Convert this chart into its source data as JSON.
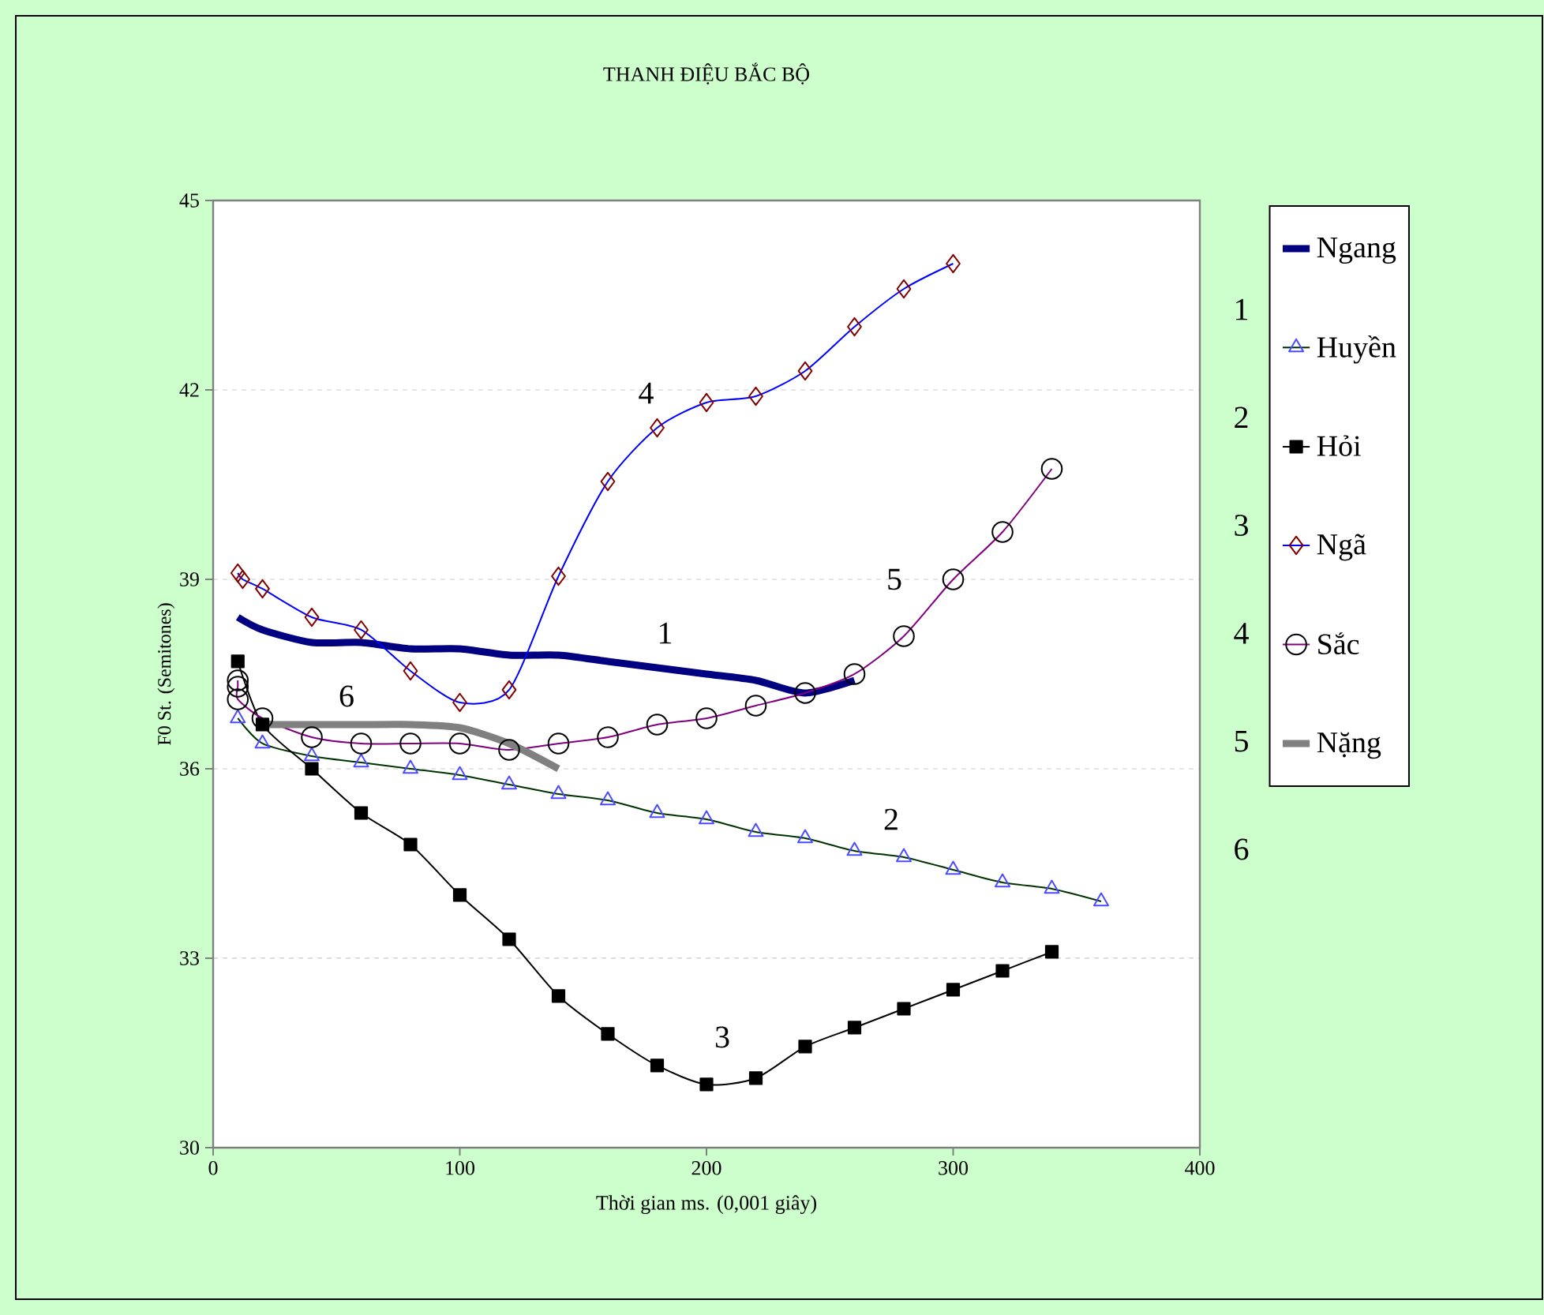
{
  "chart_data": {
    "type": "line",
    "title": "THANH ĐIỆU BẮC BỘ",
    "xlabel": "Thời gian ms. (0,001 giây)",
    "ylabel": "F0 St. (Semitones)",
    "xlim": [
      0,
      400
    ],
    "xticks": [
      0,
      100,
      200,
      300,
      400
    ],
    "ylim": [
      30,
      45
    ],
    "yticks": [
      30,
      33,
      36,
      39,
      42,
      45
    ],
    "grid": "y",
    "legend": "right",
    "series": [
      {
        "name": "Ngang",
        "color": "#000080",
        "marker": "none",
        "x": [
          10,
          20,
          40,
          60,
          80,
          100,
          120,
          140,
          160,
          180,
          200,
          220,
          240,
          260
        ],
        "values": [
          38.4,
          38.2,
          38.0,
          38.0,
          37.9,
          37.9,
          37.8,
          37.8,
          37.7,
          37.6,
          37.5,
          37.4,
          37.2,
          37.4
        ]
      },
      {
        "name": "Huyền",
        "color": "#003300",
        "marker": "triangle",
        "x": [
          10,
          20,
          40,
          60,
          80,
          100,
          120,
          140,
          160,
          180,
          200,
          220,
          240,
          260,
          280,
          300,
          320,
          340,
          360
        ],
        "values": [
          36.8,
          36.4,
          36.2,
          36.1,
          36.0,
          35.9,
          35.75,
          35.6,
          35.5,
          35.3,
          35.2,
          35.0,
          34.9,
          34.7,
          34.6,
          34.4,
          34.2,
          34.1,
          33.9
        ]
      },
      {
        "name": "Hỏi",
        "color": "#000000",
        "marker": "square",
        "x": [
          10,
          20,
          40,
          60,
          80,
          100,
          120,
          140,
          160,
          180,
          200,
          220,
          240,
          260,
          280,
          300,
          320,
          340
        ],
        "values": [
          37.7,
          36.7,
          36.0,
          35.3,
          34.8,
          34.0,
          33.3,
          32.4,
          31.8,
          31.3,
          31.0,
          31.1,
          31.6,
          31.9,
          32.2,
          32.5,
          32.8,
          33.1
        ]
      },
      {
        "name": "Ngã",
        "color": "#0000ff",
        "marker": "diamond",
        "x": [
          10,
          12,
          20,
          40,
          60,
          80,
          100,
          120,
          140,
          160,
          180,
          200,
          220,
          240,
          260,
          280,
          300
        ],
        "values": [
          39.1,
          39.0,
          38.85,
          38.4,
          38.2,
          37.55,
          37.05,
          37.25,
          39.05,
          40.55,
          41.4,
          41.8,
          41.9,
          42.3,
          43.0,
          43.6,
          44.0
        ]
      },
      {
        "name": "Sắc",
        "color": "#800080",
        "marker": "circle",
        "x": [
          10,
          10,
          10,
          20,
          40,
          60,
          80,
          100,
          120,
          140,
          160,
          180,
          200,
          220,
          240,
          260,
          280,
          300,
          320,
          340
        ],
        "values": [
          37.4,
          37.3,
          37.1,
          36.8,
          36.5,
          36.4,
          36.4,
          36.4,
          36.3,
          36.4,
          36.5,
          36.7,
          36.8,
          37.0,
          37.2,
          37.5,
          38.1,
          39.0,
          39.75,
          40.75
        ]
      },
      {
        "name": "Nặng",
        "color": "#808080",
        "marker": "none",
        "x": [
          20,
          40,
          60,
          80,
          100,
          120,
          140
        ],
        "values": [
          36.7,
          36.7,
          36.7,
          36.7,
          36.65,
          36.4,
          36.0
        ]
      }
    ],
    "annotations": [
      "1",
      "2",
      "3",
      "4",
      "5",
      "6",
      "1",
      "2",
      "3",
      "4",
      "5",
      "6"
    ]
  }
}
